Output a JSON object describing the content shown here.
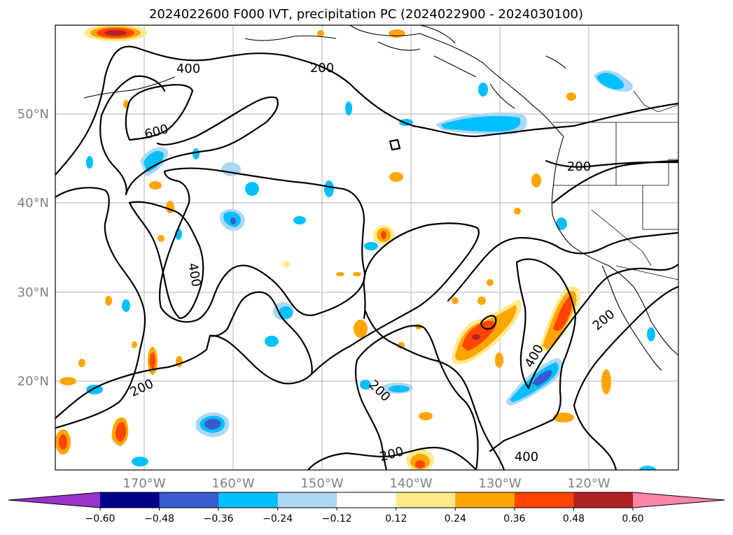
{
  "title": "2024022600 F000 IVT, precipitation PC (2024022900 - 2024030100)",
  "lon_ticks": [
    "170°W",
    "160°W",
    "150°W",
    "140°W",
    "130°W",
    "120°W"
  ],
  "lat_ticks": [
    "50°N",
    "40°N",
    "30°N",
    "20°N"
  ],
  "contour_labels": [
    "400",
    "200",
    "600",
    "200",
    "400",
    "200",
    "400",
    "200",
    "200",
    "200",
    "400"
  ],
  "colorbar": {
    "colors": [
      "#9932cc",
      "#00008b",
      "#3a5bd0",
      "#00bfff",
      "#add8f5",
      "#ffffff",
      "#ffe98a",
      "#ffa500",
      "#ff4500",
      "#b22222",
      "#ff85a8"
    ],
    "labels": [
      "−0.60",
      "−0.48",
      "−0.36",
      "−0.24",
      "−0.12",
      "0.12",
      "0.24",
      "0.36",
      "0.48",
      "0.60"
    ]
  },
  "map": {
    "extent_lon": [
      -180,
      -110
    ],
    "extent_lat": [
      10,
      60
    ],
    "ivt_contour_levels": [
      200,
      400,
      600
    ]
  }
}
